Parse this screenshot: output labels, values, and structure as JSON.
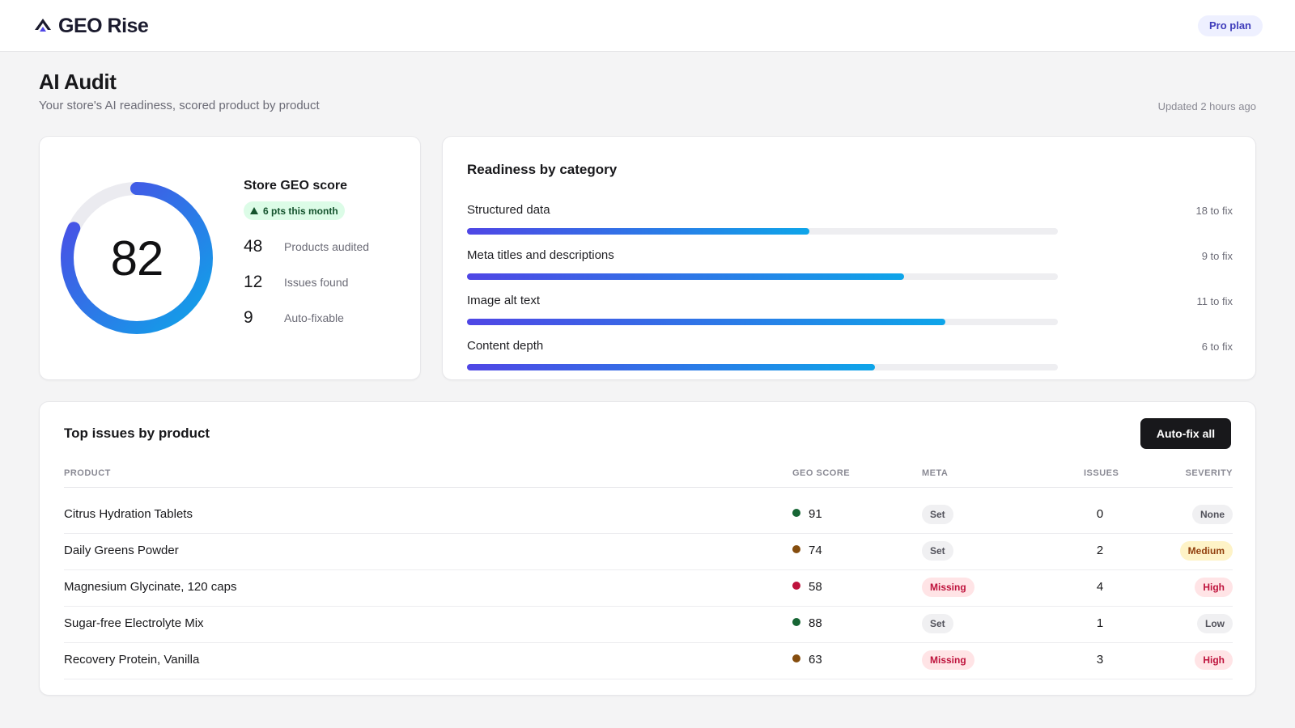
{
  "app": {
    "name": "GEO Rise",
    "plan": "Pro plan"
  },
  "page": {
    "title": "AI Audit",
    "subtitle": "Your store's AI readiness, scored product by product",
    "updated": "Updated 2 hours ago"
  },
  "score": {
    "value": "82",
    "fraction": 0.82,
    "label": "Store GEO score",
    "trend": "6 pts this month",
    "stats": [
      {
        "num": "48",
        "label": "Products audited"
      },
      {
        "num": "12",
        "label": "Issues found"
      },
      {
        "num": "9",
        "label": "Auto-fixable"
      }
    ]
  },
  "readiness": {
    "title": "Readiness by category",
    "categories": [
      {
        "label": "Structured data",
        "fix": "18 to fix",
        "fraction": 0.58
      },
      {
        "label": "Meta titles and descriptions",
        "fix": "9 to fix",
        "fraction": 0.74
      },
      {
        "label": "Image alt text",
        "fix": "11 to fix",
        "fraction": 0.81
      },
      {
        "label": "Content depth",
        "fix": "6 to fix",
        "fraction": 0.69
      }
    ]
  },
  "issues": {
    "title": "Top issues by product",
    "autofix_label": "Auto-fix all",
    "columns": {
      "product": "PRODUCT",
      "geo_score": "GEO SCORE",
      "meta": "META",
      "issues": "ISSUES",
      "severity": "SEVERITY"
    },
    "rows": [
      {
        "product": "Citrus Hydration Tablets",
        "score": "91",
        "score_color": "#166534",
        "meta": "Set",
        "issues": "0",
        "severity": "None"
      },
      {
        "product": "Daily Greens Powder",
        "score": "74",
        "score_color": "#854d0e",
        "meta": "Set",
        "issues": "2",
        "severity": "Medium"
      },
      {
        "product": "Magnesium Glycinate, 120 caps",
        "score": "58",
        "score_color": "#be123c",
        "meta": "Missing",
        "issues": "4",
        "severity": "High"
      },
      {
        "product": "Sugar-free Electrolyte Mix",
        "score": "88",
        "score_color": "#166534",
        "meta": "Set",
        "issues": "1",
        "severity": "Low"
      },
      {
        "product": "Recovery Protein, Vanilla",
        "score": "63",
        "score_color": "#854d0e",
        "meta": "Missing",
        "issues": "3",
        "severity": "High"
      }
    ]
  },
  "colors": {
    "accent": "#4f46e5",
    "accent_end": "#0ea5e9",
    "meta_set_bg": "#f0f0f2",
    "meta_set_fg": "#52525b",
    "meta_missing_bg": "#ffe4e6",
    "meta_missing_fg": "#be123c",
    "sev_none_bg": "#f0f0f2",
    "sev_none_fg": "#52525b",
    "sev_low_bg": "#f0f0f2",
    "sev_low_fg": "#52525b",
    "sev_medium_bg": "#fef3c7",
    "sev_medium_fg": "#92400e",
    "sev_high_bg": "#ffe4e6",
    "sev_high_fg": "#be123c"
  },
  "icons": {
    "brand": "mountain-peak-icon",
    "trend": "arrow-up-icon"
  }
}
